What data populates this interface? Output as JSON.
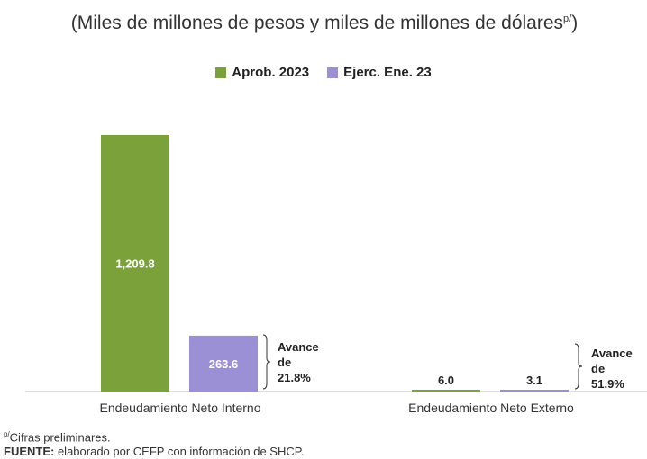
{
  "chart_data": {
    "type": "bar",
    "title_main": "(Miles de millones de pesos y miles de millones de dólares",
    "title_sup": "p/",
    "title_end": ")",
    "categories": [
      "Endeudamiento Neto Interno",
      "Endeudamiento Neto Externo"
    ],
    "series": [
      {
        "name": "Aprob. 2023",
        "color": "#7ba13a",
        "values": [
          1209.8,
          6.0
        ],
        "labels": [
          "1,209.8",
          "6.0"
        ]
      },
      {
        "name": "Ejerc. Ene. 23",
        "color": "#9b8fd6",
        "values": [
          263.6,
          3.1
        ],
        "labels": [
          "263.6",
          "3.1"
        ]
      }
    ],
    "ylim": [
      0,
      1209.8
    ],
    "annotations": [
      {
        "line1": "Avance",
        "line2": "de",
        "line3": "21.8%"
      },
      {
        "line1": "Avance",
        "line2": "de",
        "line3": "51.9%"
      }
    ]
  },
  "footnote": {
    "sup": "p/",
    "text": "Cifras preliminares.",
    "source_label": "FUENTE:",
    "source_text": " elaborado por CEFP con información de SHCP."
  }
}
